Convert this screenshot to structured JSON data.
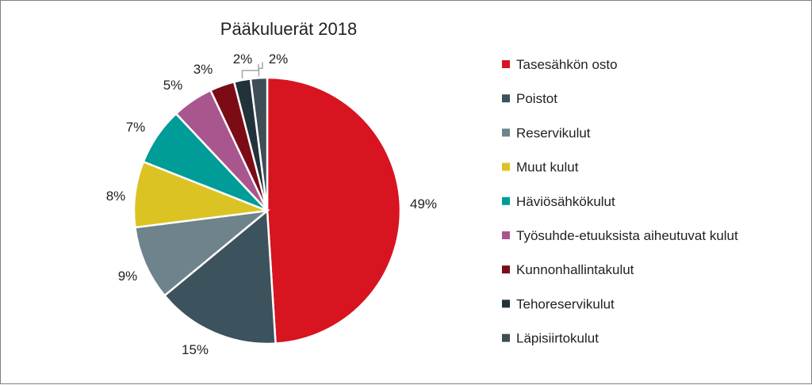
{
  "chart_data": {
    "type": "pie",
    "title": "Pääkuluerät 2018",
    "slices": [
      {
        "label": "Tasesähkön osto",
        "value": 49,
        "value_label": "49%",
        "color": "#d7141f"
      },
      {
        "label": "Poistot",
        "value": 15,
        "value_label": "15%",
        "color": "#3c525c"
      },
      {
        "label": "Reservikulut",
        "value": 9,
        "value_label": "9%",
        "color": "#6e838c"
      },
      {
        "label": "Muut kulut",
        "value": 8,
        "value_label": "8%",
        "color": "#dcc324"
      },
      {
        "label": "Häviösähkökulut",
        "value": 7,
        "value_label": "7%",
        "color": "#009c98"
      },
      {
        "label": "Työsuhde-etuuksista aiheutuvat kulut",
        "value": 5,
        "value_label": "5%",
        "color": "#a9568f"
      },
      {
        "label": "Kunnonhallintakulut",
        "value": 3,
        "value_label": "3%",
        "color": "#7b0c16"
      },
      {
        "label": "Tehoreservikulut",
        "value": 2,
        "value_label": "2%",
        "color": "#22323b"
      },
      {
        "label": "Läpisiirtokulut",
        "value": 2,
        "value_label": "2%",
        "color": "#3e4d56"
      }
    ],
    "legend_position": "right"
  }
}
